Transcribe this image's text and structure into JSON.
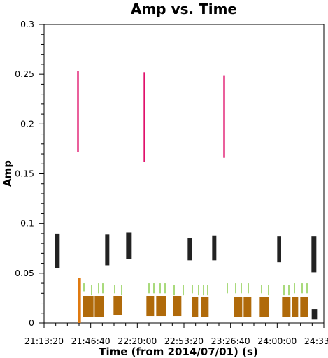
{
  "chart_data": {
    "type": "scatter",
    "title": "Amp vs. Time",
    "xlabel": "Time (from 2014/07/01) (s)",
    "ylabel": "Amp",
    "x_unit": "time of day (HH:MM:SS)",
    "xlim": [
      "21:13:20",
      "24:33:20"
    ],
    "ylim": [
      0,
      0.3
    ],
    "x_tick_labels": [
      "21:13:20",
      "21:46:40",
      "22:20:00",
      "22:53:20",
      "23:26:40",
      "24:00:00",
      "24:33:20"
    ],
    "y_tick_labels": [
      "0",
      "0.05",
      "0.1",
      "0.15",
      "0.2",
      "0.25",
      "0.3"
    ],
    "grid": false,
    "legend": "none",
    "series": [
      {
        "color": "#e0116b",
        "bars": [
          {
            "x0": "21:37:00",
            "x1": "21:38:10",
            "low": 0.172,
            "high": 0.253
          },
          {
            "x0": "22:24:30",
            "x1": "22:25:40",
            "low": 0.162,
            "high": 0.252
          },
          {
            "x0": "23:21:30",
            "x1": "23:22:40",
            "low": 0.166,
            "high": 0.249
          }
        ]
      },
      {
        "color": "#222222",
        "bars": [
          {
            "x0": "21:21:00",
            "x1": "21:24:30",
            "low": 0.055,
            "high": 0.09
          },
          {
            "x0": "21:57:00",
            "x1": "22:00:00",
            "low": 0.058,
            "high": 0.089
          },
          {
            "x0": "22:12:00",
            "x1": "22:16:00",
            "low": 0.064,
            "high": 0.091
          },
          {
            "x0": "22:56:00",
            "x1": "22:58:50",
            "low": 0.063,
            "high": 0.085
          },
          {
            "x0": "23:13:30",
            "x1": "23:16:30",
            "low": 0.063,
            "high": 0.088
          },
          {
            "x0": "24:00:00",
            "x1": "24:02:50",
            "low": 0.061,
            "high": 0.087
          },
          {
            "x0": "24:24:30",
            "x1": "24:28:00",
            "low": 0.051,
            "high": 0.087
          },
          {
            "x0": "24:24:40",
            "x1": "24:28:30",
            "low": 0.004,
            "high": 0.014
          }
        ]
      },
      {
        "color": "#e07a10",
        "bars": [
          {
            "x0": "21:37:30",
            "x1": "21:39:40",
            "low": 0.0,
            "high": 0.045
          }
        ]
      },
      {
        "color": "#7ec83a",
        "bars": [
          {
            "x0": "21:41:30",
            "x1": "21:42:10",
            "low": 0.032,
            "high": 0.04
          },
          {
            "x0": "21:47:00",
            "x1": "21:47:40",
            "low": 0.028,
            "high": 0.038
          },
          {
            "x0": "21:52:00",
            "x1": "21:52:40",
            "low": 0.03,
            "high": 0.04
          },
          {
            "x0": "21:55:00",
            "x1": "21:55:40",
            "low": 0.03,
            "high": 0.04
          },
          {
            "x0": "22:03:30",
            "x1": "22:04:10",
            "low": 0.03,
            "high": 0.038
          },
          {
            "x0": "22:08:30",
            "x1": "22:09:10",
            "low": 0.028,
            "high": 0.038
          },
          {
            "x0": "22:28:00",
            "x1": "22:28:40",
            "low": 0.03,
            "high": 0.04
          },
          {
            "x0": "22:31:30",
            "x1": "22:32:10",
            "low": 0.03,
            "high": 0.04
          },
          {
            "x0": "22:36:00",
            "x1": "22:36:40",
            "low": 0.03,
            "high": 0.04
          },
          {
            "x0": "22:39:30",
            "x1": "22:40:10",
            "low": 0.03,
            "high": 0.04
          },
          {
            "x0": "22:46:00",
            "x1": "22:46:40",
            "low": 0.028,
            "high": 0.038
          },
          {
            "x0": "22:52:30",
            "x1": "22:53:10",
            "low": 0.028,
            "high": 0.038
          },
          {
            "x0": "22:59:00",
            "x1": "22:59:40",
            "low": 0.03,
            "high": 0.038
          },
          {
            "x0": "23:03:30",
            "x1": "23:04:10",
            "low": 0.028,
            "high": 0.038
          },
          {
            "x0": "23:07:00",
            "x1": "23:07:40",
            "low": 0.028,
            "high": 0.038
          },
          {
            "x0": "23:10:00",
            "x1": "23:10:40",
            "low": 0.028,
            "high": 0.038
          },
          {
            "x0": "23:24:00",
            "x1": "23:24:40",
            "low": 0.03,
            "high": 0.04
          },
          {
            "x0": "23:30:00",
            "x1": "23:30:40",
            "low": 0.03,
            "high": 0.04
          },
          {
            "x0": "23:34:00",
            "x1": "23:34:40",
            "low": 0.03,
            "high": 0.04
          },
          {
            "x0": "23:39:00",
            "x1": "23:39:40",
            "low": 0.03,
            "high": 0.04
          },
          {
            "x0": "23:48:30",
            "x1": "23:49:10",
            "low": 0.03,
            "high": 0.038
          },
          {
            "x0": "23:53:30",
            "x1": "23:54:10",
            "low": 0.028,
            "high": 0.038
          },
          {
            "x0": "24:04:30",
            "x1": "24:05:10",
            "low": 0.028,
            "high": 0.038
          },
          {
            "x0": "24:08:00",
            "x1": "24:08:40",
            "low": 0.028,
            "high": 0.038
          },
          {
            "x0": "24:12:00",
            "x1": "24:12:40",
            "low": 0.03,
            "high": 0.04
          },
          {
            "x0": "24:17:30",
            "x1": "24:18:10",
            "low": 0.03,
            "high": 0.04
          },
          {
            "x0": "24:21:00",
            "x1": "24:21:40",
            "low": 0.03,
            "high": 0.04
          }
        ]
      },
      {
        "color": "#b06a0a",
        "bars": [
          {
            "x0": "21:41:20",
            "x1": "21:48:40",
            "low": 0.006,
            "high": 0.027
          },
          {
            "x0": "21:49:30",
            "x1": "21:55:50",
            "low": 0.006,
            "high": 0.027
          },
          {
            "x0": "22:03:00",
            "x1": "22:09:00",
            "low": 0.008,
            "high": 0.027
          },
          {
            "x0": "22:26:30",
            "x1": "22:32:00",
            "low": 0.007,
            "high": 0.027
          },
          {
            "x0": "22:33:30",
            "x1": "22:40:30",
            "low": 0.007,
            "high": 0.027
          },
          {
            "x0": "22:45:30",
            "x1": "22:51:30",
            "low": 0.007,
            "high": 0.027
          },
          {
            "x0": "22:59:00",
            "x1": "23:03:30",
            "low": 0.006,
            "high": 0.026
          },
          {
            "x0": "23:05:30",
            "x1": "23:11:00",
            "low": 0.006,
            "high": 0.026
          },
          {
            "x0": "23:29:00",
            "x1": "23:35:00",
            "low": 0.006,
            "high": 0.026
          },
          {
            "x0": "23:36:00",
            "x1": "23:41:30",
            "low": 0.006,
            "high": 0.026
          },
          {
            "x0": "23:47:30",
            "x1": "23:54:00",
            "low": 0.006,
            "high": 0.026
          },
          {
            "x0": "24:03:30",
            "x1": "24:09:30",
            "low": 0.006,
            "high": 0.026
          },
          {
            "x0": "24:10:30",
            "x1": "24:15:00",
            "low": 0.006,
            "high": 0.026
          },
          {
            "x0": "24:16:30",
            "x1": "24:22:00",
            "low": 0.006,
            "high": 0.026
          }
        ]
      }
    ]
  }
}
